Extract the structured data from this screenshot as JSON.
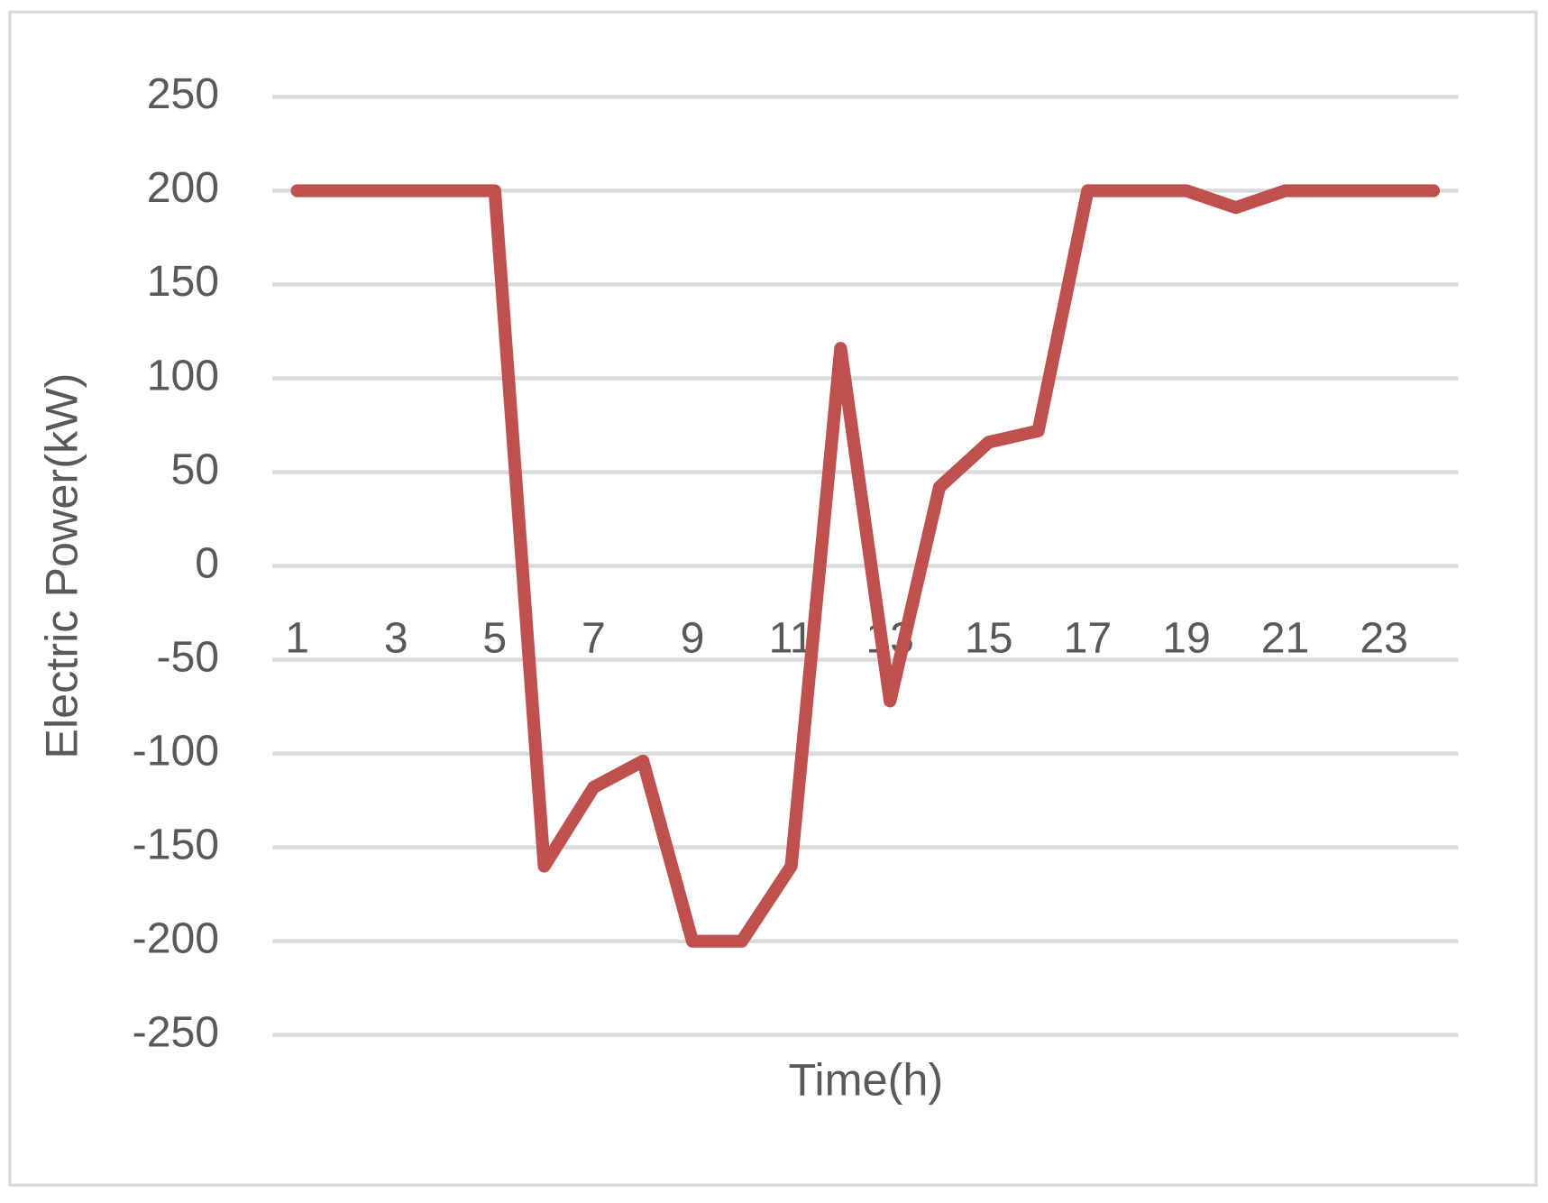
{
  "chart_data": {
    "type": "line",
    "x_label": "Time(h)",
    "y_label": "Electric Power(kW)",
    "categories": [
      "1",
      null,
      "3",
      null,
      "5",
      null,
      "7",
      null,
      "9",
      null,
      "11",
      null,
      "13",
      null,
      "15",
      null,
      "17",
      null,
      "19",
      null,
      "21",
      null,
      "23",
      null
    ],
    "values": [
      200,
      200,
      200,
      200,
      200,
      -160,
      -118,
      -104,
      -200,
      -200,
      -160,
      116,
      -72,
      42,
      66,
      72,
      200,
      200,
      200,
      191,
      200,
      200,
      200,
      200
    ],
    "color": "#c0504d",
    "ylim": [
      -250,
      250
    ],
    "yticks": [
      -250,
      -200,
      -150,
      -100,
      -50,
      0,
      50,
      100,
      150,
      200,
      250
    ],
    "grid": true
  }
}
